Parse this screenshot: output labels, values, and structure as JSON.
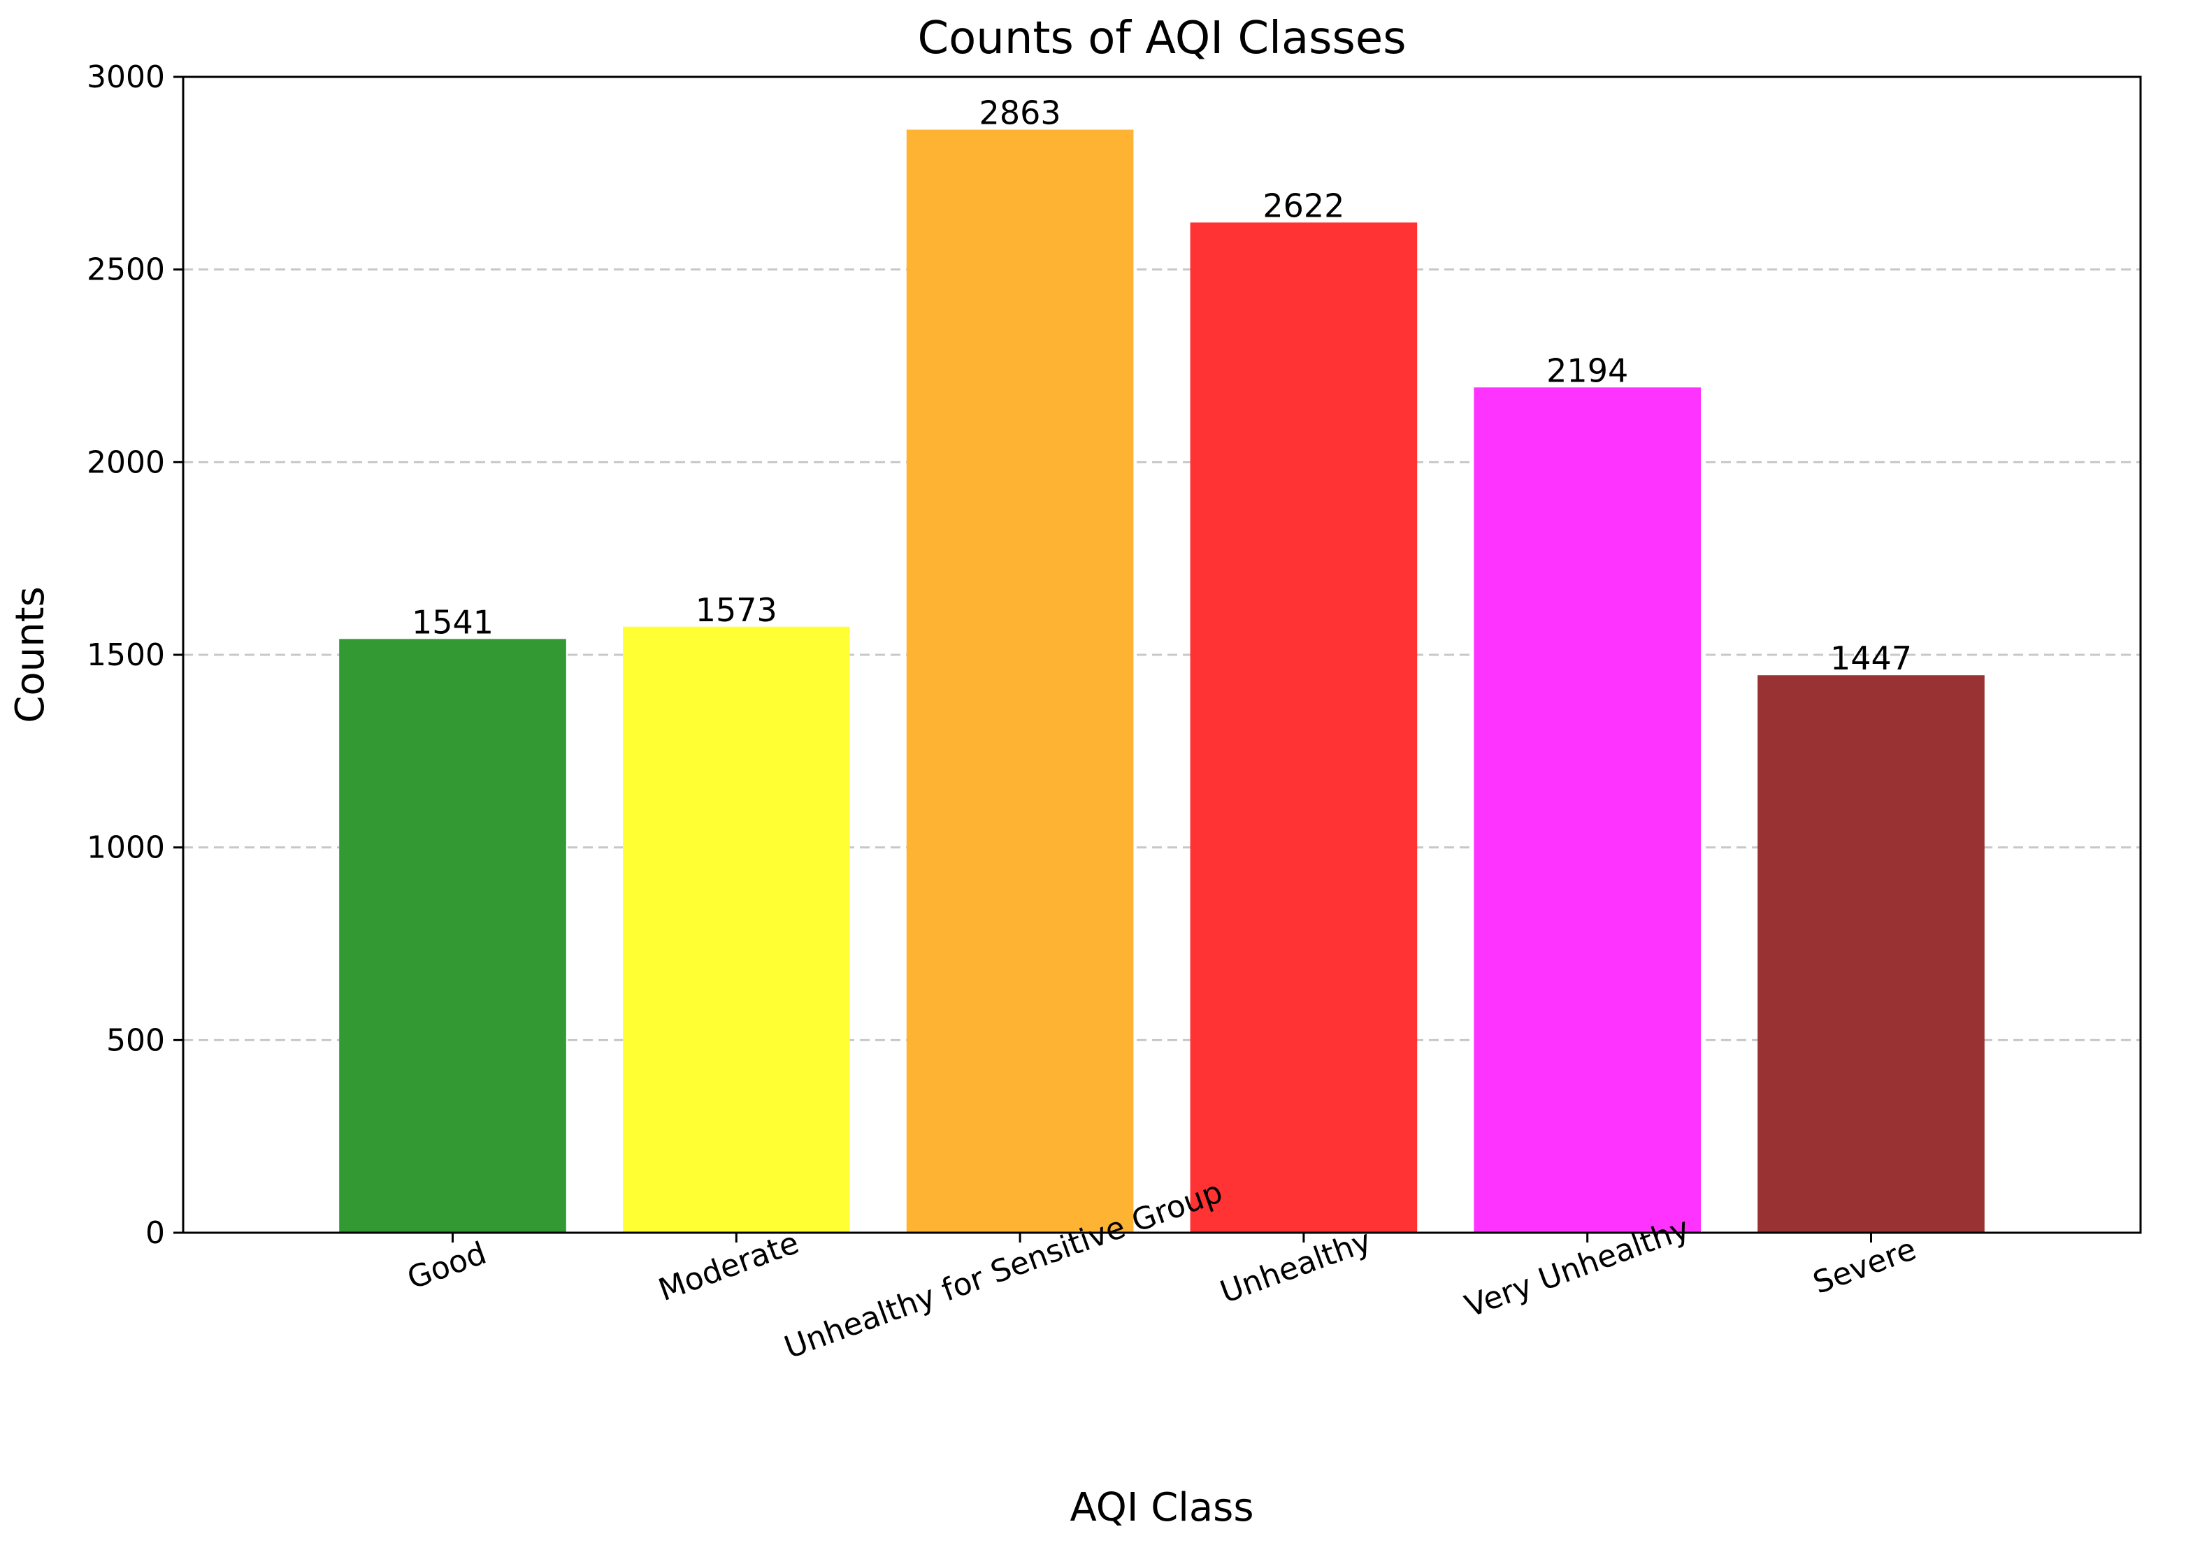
{
  "chart_data": {
    "type": "bar",
    "title": "Counts of AQI Classes",
    "xlabel": "AQI Class",
    "ylabel": "Counts",
    "categories": [
      "Good",
      "Moderate",
      "Unhealthy for Sensitive Group",
      "Unhealthy",
      "Very Unhealthy",
      "Severe"
    ],
    "values": [
      1541,
      1573,
      2863,
      2622,
      2194,
      1447
    ],
    "value_labels": [
      "1541",
      "1573",
      "2863",
      "2622",
      "2194",
      "1447"
    ],
    "colors": [
      "#339933",
      "#ffff33",
      "#ffb333",
      "#ff3333",
      "#ff33ff",
      "#993333"
    ],
    "ylim": [
      0,
      3000
    ],
    "yticks": [
      0,
      500,
      1000,
      1500,
      2000,
      2500,
      3000
    ],
    "ytick_labels": [
      "0",
      "500",
      "1000",
      "1500",
      "2000",
      "2500",
      "3000"
    ],
    "grid": "y-dashed",
    "tick_rotation": -20,
    "legend": "none"
  }
}
